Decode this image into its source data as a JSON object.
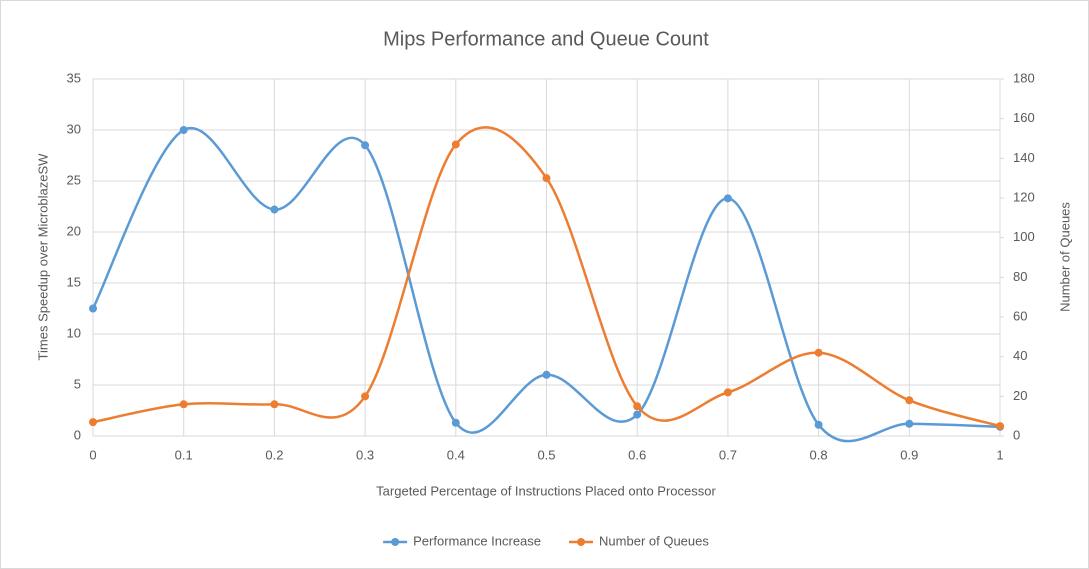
{
  "chart_data": {
    "type": "line",
    "title": "Mips Performance and Queue Count",
    "x_label": "Targeted  Percentage of Instructions Placed onto Processor",
    "y_label": "Times Speedup  over MicroblazeSW",
    "y2_label": "Number  of Queues",
    "x": [
      0,
      0.1,
      0.2,
      0.3,
      0.4,
      0.5,
      0.6,
      0.7,
      0.8,
      0.9,
      1
    ],
    "xlim": [
      0,
      1
    ],
    "xticks": [
      0,
      0.1,
      0.2,
      0.3,
      0.4,
      0.5,
      0.6,
      0.7,
      0.8,
      0.9,
      1
    ],
    "ylim": [
      0,
      35
    ],
    "yticks": [
      0,
      5,
      10,
      15,
      20,
      25,
      30,
      35
    ],
    "y2lim": [
      0,
      180
    ],
    "y2ticks": [
      0,
      20,
      40,
      60,
      80,
      100,
      120,
      140,
      160,
      180
    ],
    "grid": true,
    "smooth": true,
    "legend": "bottom",
    "series": [
      {
        "name": "Performance Increase",
        "color": "#5b9bd5",
        "values": [
          12.5,
          30,
          22.2,
          28.5,
          1.3,
          6,
          2.1,
          23.3,
          1.1,
          1.2,
          0.9
        ]
      },
      {
        "name": "Number of Queues",
        "color": "#ed7d31",
        "axis": "y2",
        "values": [
          7,
          16,
          16,
          20,
          147,
          130,
          15,
          22,
          42,
          18,
          5
        ]
      }
    ]
  }
}
